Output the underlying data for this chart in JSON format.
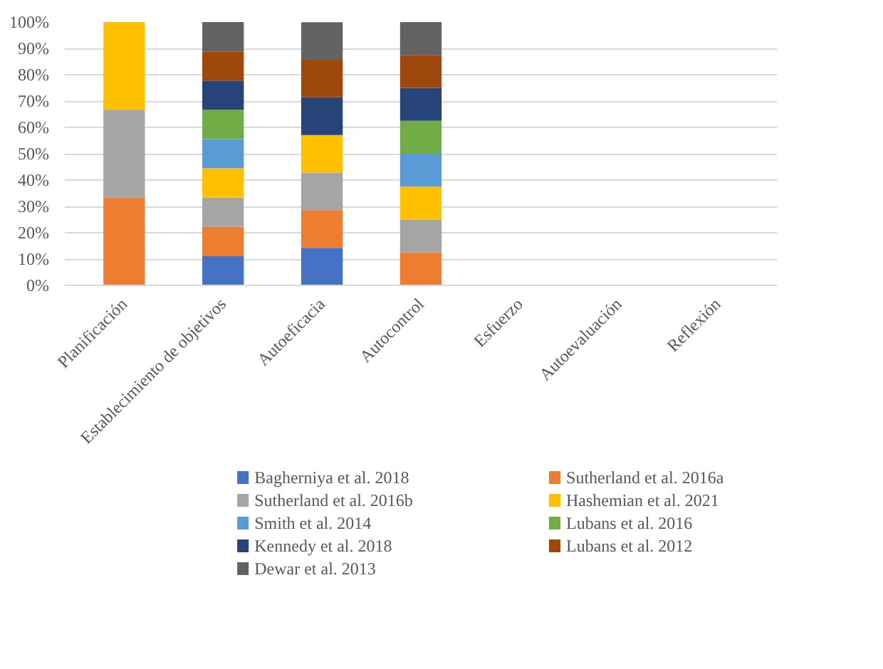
{
  "chart_data": {
    "type": "bar",
    "stacked": true,
    "categories": [
      "Planificación",
      "Establecimiento de objetivos",
      "Autoeficacia",
      "Autocontrol",
      "Esfuerzo",
      "Autoevaluación",
      "Reflexión"
    ],
    "series": [
      {
        "name": "Bagherniya et al. 2018",
        "color": "#4472c4",
        "values": [
          null,
          11.11,
          14.28,
          null,
          null,
          null,
          null
        ]
      },
      {
        "name": "Sutherland et al. 2016a",
        "color": "#ed7d31",
        "values": [
          33.33,
          11.11,
          14.28,
          12.5,
          null,
          null,
          null
        ]
      },
      {
        "name": "Sutherland et al. 2016b",
        "color": "#a5a5a5",
        "values": [
          33.33,
          11.11,
          14.28,
          12.5,
          null,
          null,
          null
        ]
      },
      {
        "name": "Hashemian et al. 2021",
        "color": "#ffc000",
        "values": [
          33.33,
          11.11,
          14.28,
          12.5,
          null,
          null,
          null
        ]
      },
      {
        "name": "Smith et al. 2014",
        "color": "#5b9bd5",
        "values": [
          null,
          11.11,
          null,
          12.5,
          null,
          null,
          null
        ]
      },
      {
        "name": "Lubans et al. 2016",
        "color": "#70ad47",
        "values": [
          null,
          11.11,
          null,
          12.5,
          null,
          null,
          null
        ]
      },
      {
        "name": "Kennedy et al. 2018",
        "color": "#264478",
        "values": [
          null,
          11.11,
          14.28,
          12.5,
          null,
          null,
          null
        ]
      },
      {
        "name": "Lubans et al. 2012",
        "color": "#9e480e",
        "values": [
          null,
          11.11,
          14.28,
          12.5,
          null,
          null,
          null
        ]
      },
      {
        "name": "Dewar et al. 2013",
        "color": "#636363",
        "values": [
          null,
          11.11,
          14.28,
          12.5,
          null,
          null,
          null
        ]
      }
    ],
    "ylim": [
      0,
      100
    ],
    "yticks": [
      {
        "value": 0,
        "label": "0%"
      },
      {
        "value": 10,
        "label": "10%"
      },
      {
        "value": 20,
        "label": "20%"
      },
      {
        "value": 30,
        "label": "30%"
      },
      {
        "value": 40,
        "label": "40%"
      },
      {
        "value": 50,
        "label": "50%"
      },
      {
        "value": 60,
        "label": "60%"
      },
      {
        "value": 70,
        "label": "70%"
      },
      {
        "value": 80,
        "label": "80%"
      },
      {
        "value": 90,
        "label": "90%"
      },
      {
        "value": 100,
        "label": "100%"
      }
    ],
    "grid": "y",
    "legend": "bottom"
  }
}
